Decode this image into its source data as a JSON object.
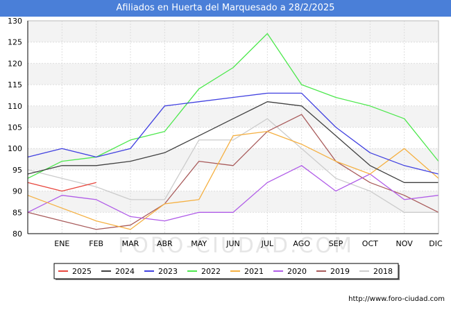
{
  "title": "Afiliados en Huerta del Marquesado a 28/2/2025",
  "watermark": "FORO-CIUDAD.COM",
  "footer_url": "http://www.foro-ciudad.com",
  "colors": {
    "title_bg": "#4a7fd8",
    "title_text": "#ffffff",
    "band": "#f3f3f3",
    "grid": "#dddddd",
    "axis": "#000000"
  },
  "chart_data": {
    "type": "line",
    "title": "Afiliados en Huerta del Marquesado a 28/2/2025",
    "xlabel": "",
    "ylabel": "",
    "x": [
      "",
      "ENE",
      "FEB",
      "MAR",
      "ABR",
      "MAY",
      "JUN",
      "JUL",
      "AGO",
      "SEP",
      "OCT",
      "NOV",
      "DIC"
    ],
    "ylim": [
      80,
      130
    ],
    "yticks": [
      80,
      85,
      90,
      95,
      100,
      105,
      110,
      115,
      120,
      125,
      130
    ],
    "grid": true,
    "legend_position": "bottom",
    "series": [
      {
        "name": "2025",
        "color": "#e8453c",
        "values": [
          92,
          90,
          92,
          null,
          null,
          null,
          null,
          null,
          null,
          null,
          null,
          null,
          null
        ]
      },
      {
        "name": "2024",
        "color": "#404040",
        "values": [
          94,
          96,
          96,
          97,
          99,
          103,
          107,
          111,
          110,
          103,
          96,
          92,
          92
        ]
      },
      {
        "name": "2023",
        "color": "#4040e0",
        "values": [
          98,
          100,
          98,
          100,
          110,
          111,
          112,
          113,
          113,
          105,
          99,
          96,
          94
        ]
      },
      {
        "name": "2022",
        "color": "#4ce84c",
        "values": [
          93,
          97,
          98,
          102,
          104,
          114,
          119,
          127,
          115,
          112,
          110,
          107,
          97
        ]
      },
      {
        "name": "2021",
        "color": "#f5b041",
        "values": [
          89,
          86,
          83,
          81,
          87,
          88,
          103,
          104,
          101,
          97,
          94,
          100,
          93
        ]
      },
      {
        "name": "2020",
        "color": "#b05ce8",
        "values": [
          85,
          89,
          88,
          84,
          83,
          85,
          85,
          92,
          96,
          90,
          94,
          88,
          89
        ]
      },
      {
        "name": "2019",
        "color": "#a85a5a",
        "values": [
          85,
          83,
          81,
          82,
          87,
          97,
          96,
          104,
          108,
          97,
          92,
          89,
          85
        ]
      },
      {
        "name": "2018",
        "color": "#cccccc",
        "values": [
          95,
          93,
          91,
          88,
          88,
          102,
          102,
          107,
          100,
          93,
          90,
          85,
          85
        ]
      }
    ]
  }
}
